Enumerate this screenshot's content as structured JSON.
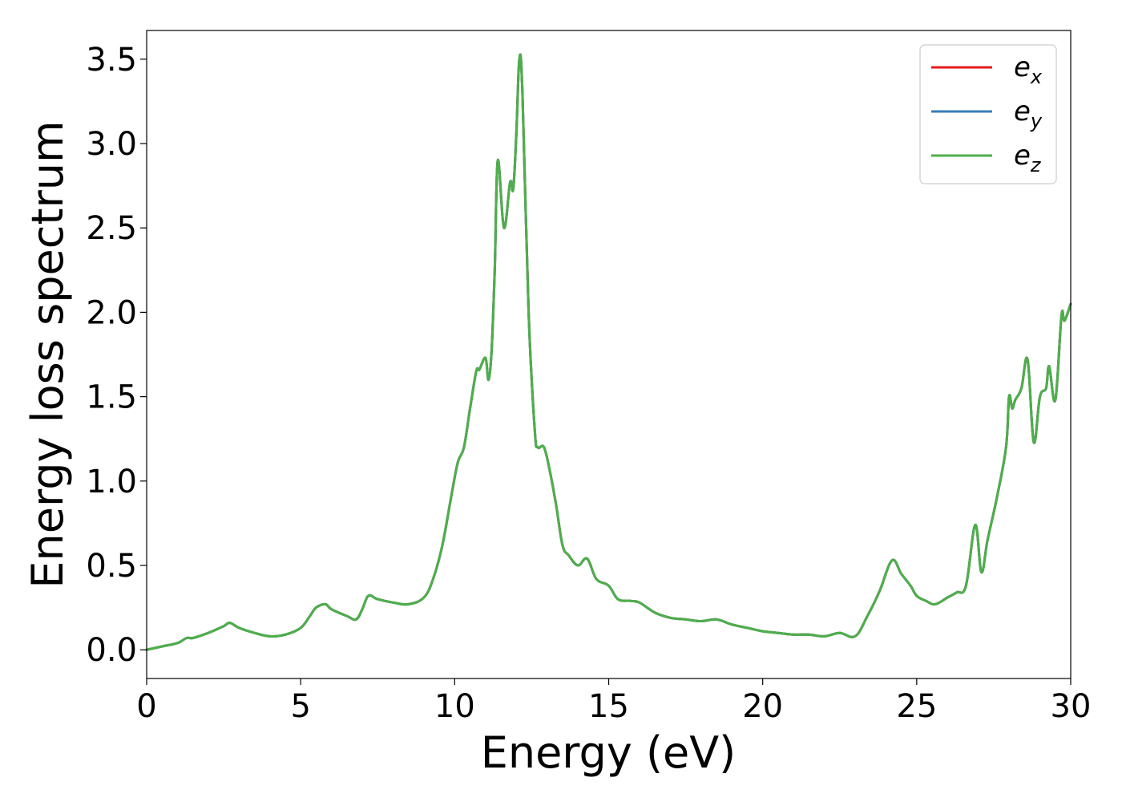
{
  "chart_data": {
    "type": "line",
    "xlabel": "Energy (eV)",
    "ylabel": "Energy loss spectrum",
    "xlim": [
      0,
      30
    ],
    "ylim": [
      -0.17,
      3.67
    ],
    "xticks": [
      0,
      5,
      10,
      15,
      20,
      25,
      30
    ],
    "xtick_labels": [
      "0",
      "5",
      "10",
      "15",
      "20",
      "25",
      "30"
    ],
    "yticks": [
      0.0,
      0.5,
      1.0,
      1.5,
      2.0,
      2.5,
      3.0,
      3.5
    ],
    "ytick_labels": [
      "0.0",
      "0.5",
      "1.0",
      "1.5",
      "2.0",
      "2.5",
      "3.0",
      "3.5"
    ],
    "grid": false,
    "legend_position": "top-right",
    "x": [
      0,
      0.5,
      1.0,
      1.3,
      1.5,
      2.0,
      2.5,
      2.7,
      3.0,
      3.5,
      4.0,
      4.5,
      5.0,
      5.3,
      5.5,
      5.8,
      6.0,
      6.5,
      6.8,
      7.0,
      7.2,
      7.5,
      8.0,
      8.5,
      9.0,
      9.3,
      9.6,
      9.9,
      10.1,
      10.3,
      10.5,
      10.7,
      10.8,
      11.0,
      11.1,
      11.2,
      11.3,
      11.4,
      11.6,
      11.8,
      11.9,
      12.0,
      12.1,
      12.2,
      12.4,
      12.6,
      12.7,
      12.9,
      13.1,
      13.3,
      13.5,
      13.7,
      14.0,
      14.3,
      14.6,
      15.0,
      15.3,
      15.7,
      16.0,
      16.5,
      17.0,
      17.5,
      18.0,
      18.5,
      19.0,
      19.5,
      20.0,
      20.5,
      21.0,
      21.5,
      22.0,
      22.5,
      23.0,
      23.4,
      23.8,
      24.2,
      24.5,
      24.8,
      25.0,
      25.3,
      25.6,
      26.0,
      26.3,
      26.6,
      26.9,
      27.1,
      27.3,
      27.6,
      27.9,
      28.0,
      28.1,
      28.2,
      28.4,
      28.6,
      28.8,
      29.0,
      29.2,
      29.3,
      29.5,
      29.7,
      29.8,
      30.0
    ],
    "series": [
      {
        "name": "e_x",
        "color": "#e41a1c",
        "values": [
          0.0,
          0.02,
          0.04,
          0.07,
          0.07,
          0.1,
          0.14,
          0.16,
          0.13,
          0.1,
          0.08,
          0.09,
          0.13,
          0.2,
          0.25,
          0.27,
          0.24,
          0.2,
          0.18,
          0.24,
          0.32,
          0.3,
          0.28,
          0.27,
          0.31,
          0.42,
          0.62,
          0.92,
          1.11,
          1.2,
          1.43,
          1.65,
          1.66,
          1.73,
          1.6,
          1.78,
          2.25,
          2.9,
          2.5,
          2.77,
          2.73,
          3.05,
          3.5,
          3.3,
          2.0,
          1.3,
          1.2,
          1.2,
          1.05,
          0.85,
          0.62,
          0.56,
          0.5,
          0.54,
          0.42,
          0.38,
          0.3,
          0.29,
          0.28,
          0.22,
          0.19,
          0.18,
          0.17,
          0.18,
          0.15,
          0.13,
          0.11,
          0.1,
          0.09,
          0.09,
          0.08,
          0.1,
          0.08,
          0.2,
          0.35,
          0.53,
          0.45,
          0.38,
          0.32,
          0.29,
          0.27,
          0.31,
          0.34,
          0.38,
          0.74,
          0.46,
          0.65,
          0.9,
          1.2,
          1.5,
          1.43,
          1.48,
          1.55,
          1.72,
          1.23,
          1.5,
          1.55,
          1.68,
          1.48,
          1.98,
          1.95,
          2.05
        ]
      },
      {
        "name": "e_y",
        "color": "#377eb8",
        "values": [
          0.0,
          0.02,
          0.04,
          0.07,
          0.07,
          0.1,
          0.14,
          0.16,
          0.13,
          0.1,
          0.08,
          0.09,
          0.13,
          0.2,
          0.25,
          0.27,
          0.24,
          0.2,
          0.18,
          0.24,
          0.32,
          0.3,
          0.28,
          0.27,
          0.31,
          0.42,
          0.62,
          0.92,
          1.11,
          1.2,
          1.43,
          1.65,
          1.66,
          1.73,
          1.6,
          1.78,
          2.25,
          2.9,
          2.5,
          2.77,
          2.73,
          3.05,
          3.5,
          3.3,
          2.0,
          1.3,
          1.2,
          1.2,
          1.05,
          0.85,
          0.62,
          0.56,
          0.5,
          0.54,
          0.42,
          0.38,
          0.3,
          0.29,
          0.28,
          0.22,
          0.19,
          0.18,
          0.17,
          0.18,
          0.15,
          0.13,
          0.11,
          0.1,
          0.09,
          0.09,
          0.08,
          0.1,
          0.08,
          0.2,
          0.35,
          0.53,
          0.45,
          0.38,
          0.32,
          0.29,
          0.27,
          0.31,
          0.34,
          0.38,
          0.74,
          0.46,
          0.65,
          0.9,
          1.2,
          1.5,
          1.43,
          1.48,
          1.55,
          1.72,
          1.23,
          1.5,
          1.55,
          1.68,
          1.48,
          1.98,
          1.95,
          2.05
        ]
      },
      {
        "name": "e_z",
        "color": "#4daf4a",
        "values": [
          0.0,
          0.02,
          0.04,
          0.07,
          0.07,
          0.1,
          0.14,
          0.16,
          0.13,
          0.1,
          0.08,
          0.09,
          0.13,
          0.2,
          0.25,
          0.27,
          0.24,
          0.2,
          0.18,
          0.24,
          0.32,
          0.3,
          0.28,
          0.27,
          0.31,
          0.42,
          0.62,
          0.92,
          1.11,
          1.2,
          1.43,
          1.65,
          1.66,
          1.73,
          1.6,
          1.78,
          2.25,
          2.9,
          2.5,
          2.77,
          2.73,
          3.05,
          3.5,
          3.3,
          2.0,
          1.3,
          1.2,
          1.2,
          1.05,
          0.85,
          0.62,
          0.56,
          0.5,
          0.54,
          0.42,
          0.38,
          0.3,
          0.29,
          0.28,
          0.22,
          0.19,
          0.18,
          0.17,
          0.18,
          0.15,
          0.13,
          0.11,
          0.1,
          0.09,
          0.09,
          0.08,
          0.1,
          0.08,
          0.2,
          0.35,
          0.53,
          0.45,
          0.38,
          0.32,
          0.29,
          0.27,
          0.31,
          0.34,
          0.38,
          0.74,
          0.46,
          0.65,
          0.9,
          1.2,
          1.5,
          1.43,
          1.48,
          1.55,
          1.72,
          1.23,
          1.5,
          1.55,
          1.68,
          1.48,
          1.98,
          1.95,
          2.05
        ]
      }
    ],
    "legend": [
      {
        "base": "e",
        "sub": "x",
        "color": "#e41a1c"
      },
      {
        "base": "e",
        "sub": "y",
        "color": "#377eb8"
      },
      {
        "base": "e",
        "sub": "z",
        "color": "#4daf4a"
      }
    ]
  }
}
